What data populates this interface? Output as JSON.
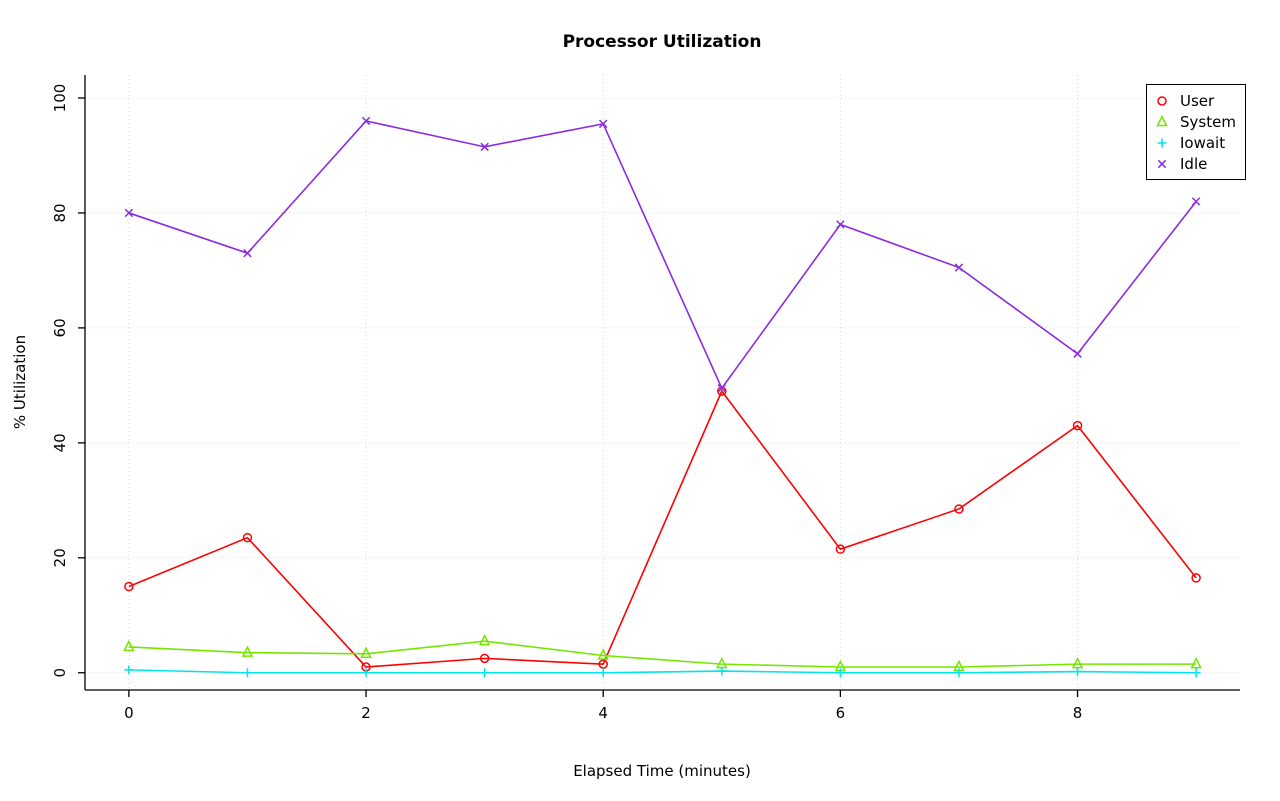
{
  "chart_data": {
    "type": "line",
    "title": "Processor Utilization",
    "xlabel": "Elapsed Time (minutes)",
    "ylabel": "% Utilization",
    "x": [
      0,
      1,
      2,
      3,
      4,
      5,
      6,
      7,
      8,
      9
    ],
    "series": [
      {
        "name": "User",
        "marker": "circle",
        "color": "#ff0000",
        "values": [
          15,
          23.5,
          1,
          2.5,
          1.5,
          49,
          21.5,
          28.5,
          43,
          16.5
        ]
      },
      {
        "name": "System",
        "marker": "triangle",
        "color": "#76e600",
        "values": [
          4.5,
          3.5,
          3.3,
          5.5,
          3,
          1.5,
          1,
          1,
          1.5,
          1.5
        ]
      },
      {
        "name": "Iowait",
        "marker": "plus",
        "color": "#00e5ee",
        "values": [
          0.5,
          0,
          0,
          0,
          0,
          0.3,
          0,
          0,
          0.2,
          0
        ]
      },
      {
        "name": "Idle",
        "marker": "x",
        "color": "#8a2be2",
        "values": [
          80,
          73,
          96,
          91.5,
          95.5,
          49.5,
          78,
          70.5,
          55.5,
          82
        ]
      }
    ],
    "xlim": [
      -0.37,
      9.37
    ],
    "ylim": [
      -3,
      104
    ],
    "x_ticks": [
      0,
      2,
      4,
      6,
      8
    ],
    "y_ticks": [
      0,
      20,
      40,
      60,
      80,
      100
    ],
    "grid": true,
    "grid_color": "#d9d9d9",
    "axis_color": "#000000",
    "legend_position": "top-right"
  }
}
